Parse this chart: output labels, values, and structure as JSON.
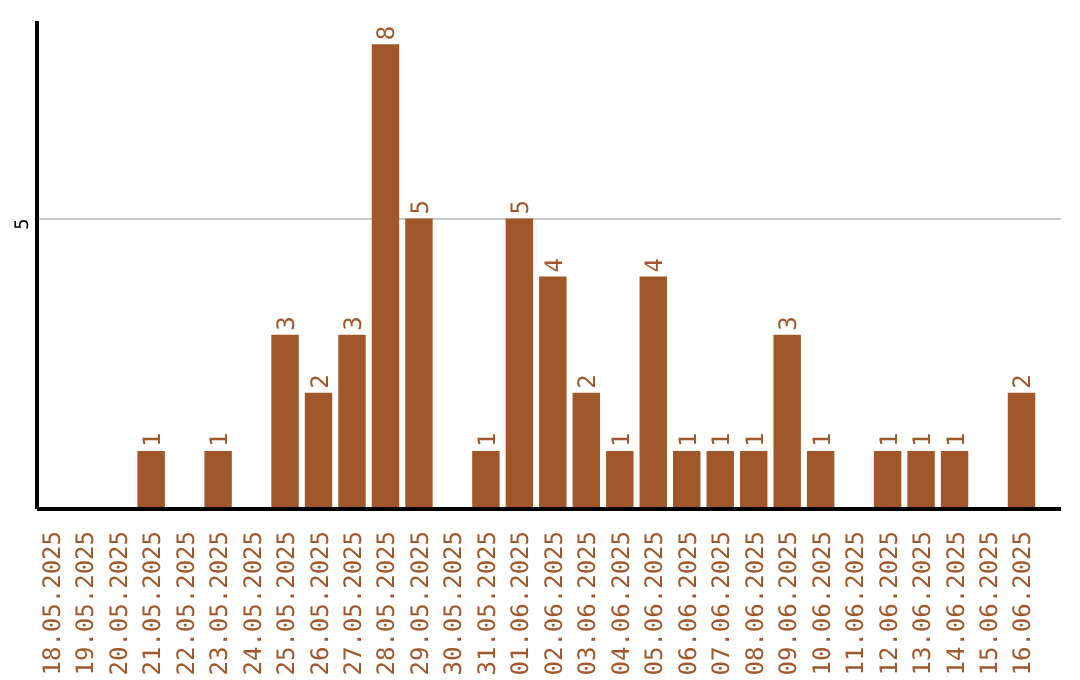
{
  "chart_data": {
    "type": "bar",
    "categories": [
      "18.05.2025",
      "19.05.2025",
      "20.05.2025",
      "21.05.2025",
      "22.05.2025",
      "23.05.2025",
      "24.05.2025",
      "25.05.2025",
      "26.05.2025",
      "27.05.2025",
      "28.05.2025",
      "29.05.2025",
      "30.05.2025",
      "31.05.2025",
      "01.06.2025",
      "02.06.2025",
      "03.06.2025",
      "04.06.2025",
      "05.06.2025",
      "06.06.2025",
      "07.06.2025",
      "08.06.2025",
      "09.06.2025",
      "10.06.2025",
      "11.06.2025",
      "12.06.2025",
      "13.06.2025",
      "14.06.2025",
      "15.06.2025",
      "16.06.2025"
    ],
    "values": [
      0,
      0,
      0,
      1,
      0,
      1,
      0,
      3,
      2,
      3,
      8,
      5,
      0,
      1,
      5,
      4,
      2,
      1,
      4,
      1,
      1,
      1,
      3,
      1,
      0,
      1,
      1,
      1,
      0,
      2
    ],
    "value_labels": [
      null,
      null,
      null,
      "1",
      null,
      "1",
      null,
      "3",
      "2",
      "3",
      "8",
      "5",
      null,
      "1",
      "5",
      "4",
      "2",
      "1",
      "4",
      "1",
      "1",
      "1",
      "3",
      "1",
      null,
      "1",
      "1",
      "1",
      null,
      "2"
    ],
    "color": "#a0582a",
    "ylim": [
      0,
      8.4
    ],
    "yticks": [
      5
    ],
    "grid": "y"
  }
}
